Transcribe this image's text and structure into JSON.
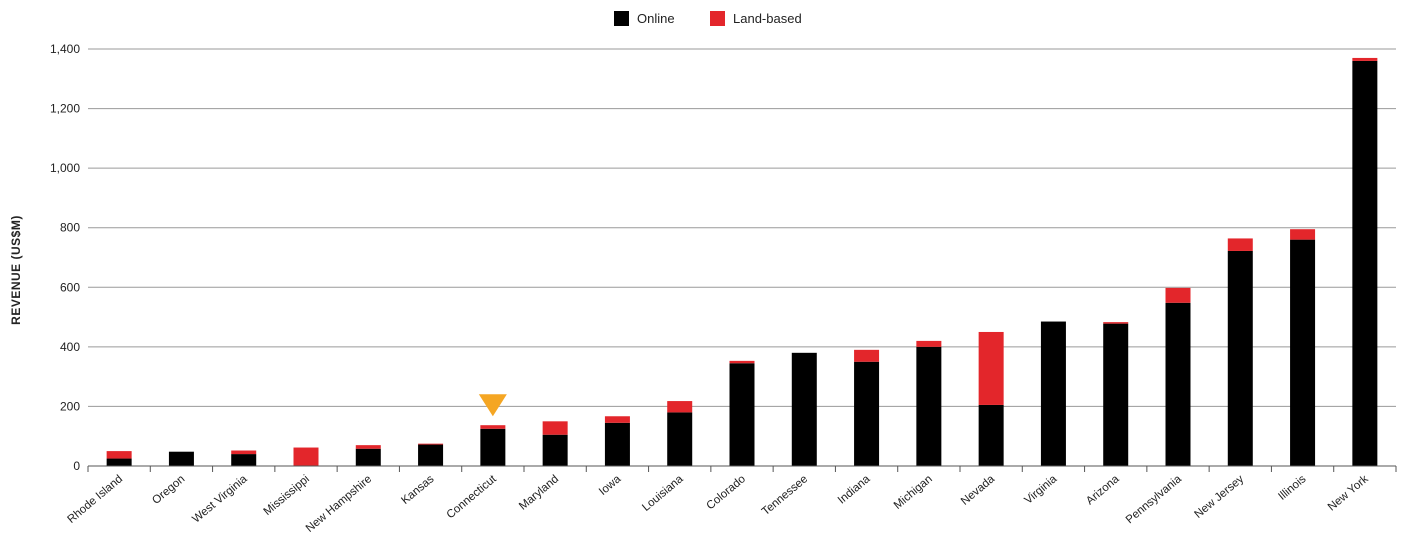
{
  "chart_data": {
    "type": "bar",
    "stacked": true,
    "ylabel": "REVENUE (US$M)",
    "xlabel": "",
    "ylim": [
      0,
      1400
    ],
    "yticks": [
      0,
      200,
      400,
      600,
      800,
      1000,
      1200,
      1400
    ],
    "ytick_labels": [
      "0",
      "200",
      "400",
      "600",
      "800",
      "1,000",
      "1,200",
      "1,400"
    ],
    "grid": true,
    "legend_position": "top-center",
    "categories": [
      "Rhode Island",
      "Oregon",
      "West Virginia",
      "Mississippi",
      "New Hampshire",
      "Kansas",
      "Connecticut",
      "Maryland",
      "Iowa",
      "Louisiana",
      "Colorado",
      "Tennessee",
      "Indiana",
      "Michigan",
      "Nevada",
      "Virginia",
      "Arizona",
      "Pennsylvania",
      "New Jersey",
      "Illinois",
      "New York"
    ],
    "series": [
      {
        "name": "Online",
        "color": "#000000",
        "values": [
          25,
          48,
          40,
          0,
          58,
          72,
          125,
          105,
          145,
          180,
          345,
          380,
          350,
          400,
          205,
          485,
          478,
          548,
          722,
          760,
          1360
        ]
      },
      {
        "name": "Land-based",
        "color": "#e3262b",
        "values": [
          25,
          0,
          12,
          62,
          12,
          3,
          12,
          45,
          22,
          38,
          8,
          0,
          40,
          20,
          245,
          0,
          5,
          50,
          42,
          35,
          10
        ]
      }
    ],
    "highlight": {
      "category": "Connecticut",
      "marker": "triangle-down",
      "color": "#f5a623"
    }
  }
}
